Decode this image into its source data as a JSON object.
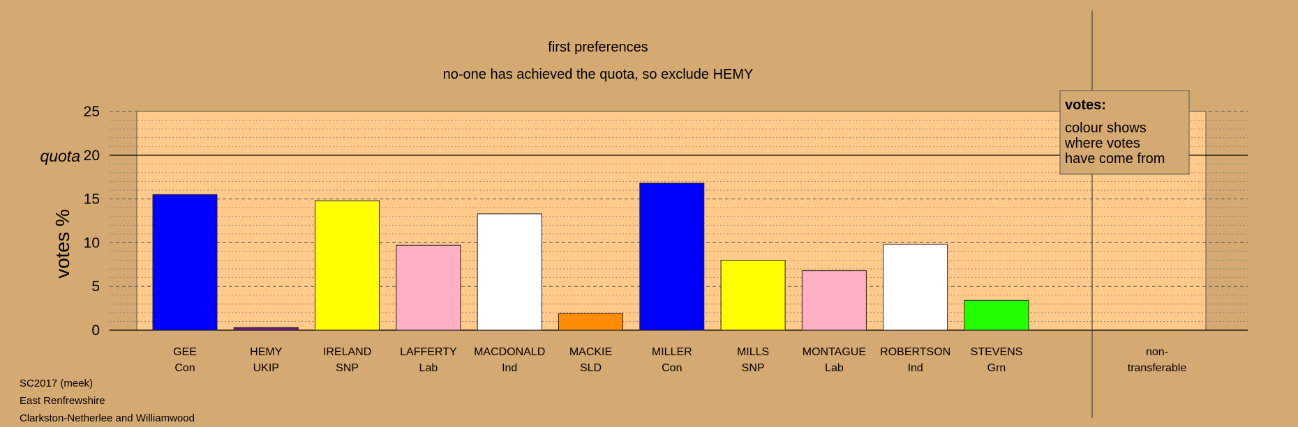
{
  "chart_data": {
    "type": "bar",
    "title": "first preferences",
    "subtitle": "no-one has achieved the quota, so exclude HEMY",
    "ylabel": "votes %",
    "quota_label": "quota",
    "quota_value": 20,
    "ylim": [
      0,
      25
    ],
    "yticks": [
      "0",
      "5",
      "10",
      "15",
      "20",
      "25"
    ],
    "categories": [
      {
        "name": "GEE",
        "party": "Con",
        "value": 15.5,
        "color": "#0000ff"
      },
      {
        "name": "HEMY",
        "party": "UKIP",
        "value": 0.3,
        "color": "#70147a"
      },
      {
        "name": "IRELAND",
        "party": "SNP",
        "value": 14.8,
        "color": "#ffff00"
      },
      {
        "name": "LAFFERTY",
        "party": "Lab",
        "value": 9.7,
        "color": "#ffb0c4"
      },
      {
        "name": "MACDONALD",
        "party": "Ind",
        "value": 13.3,
        "color": "#ffffff"
      },
      {
        "name": "MACKIE",
        "party": "SLD",
        "value": 1.9,
        "color": "#ff8c00"
      },
      {
        "name": "MILLER",
        "party": "Con",
        "value": 16.8,
        "color": "#0000ff"
      },
      {
        "name": "MILLS",
        "party": "SNP",
        "value": 8.0,
        "color": "#ffff00"
      },
      {
        "name": "MONTAGUE",
        "party": "Lab",
        "value": 6.8,
        "color": "#ffb0c4"
      },
      {
        "name": "ROBERTSON",
        "party": "Ind",
        "value": 9.8,
        "color": "#ffffff"
      },
      {
        "name": "STEVENS",
        "party": "Grn",
        "value": 3.4,
        "color": "#22ff00"
      }
    ],
    "nontransferable_label": [
      "non-",
      "transferable"
    ],
    "legend": {
      "title": "votes:",
      "lines": [
        "colour shows",
        "where votes",
        "have come from"
      ],
      "position": "top-right"
    },
    "grid": true,
    "plot_background": "#ffca8a"
  },
  "footer": {
    "line1": "SC2017 (meek)",
    "line2": "East Renfrewshire",
    "line3": "Clarkston-Netherlee and Williamwood"
  }
}
